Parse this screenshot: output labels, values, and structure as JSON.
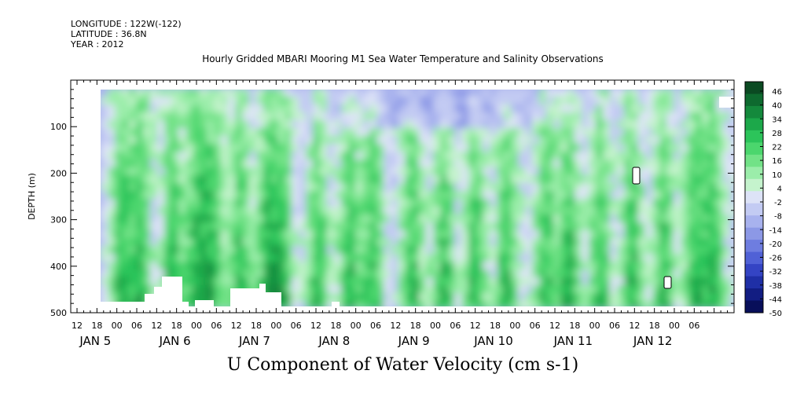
{
  "header": {
    "longitude": "LONGITUDE : 122W(-122)",
    "latitude": "LATITUDE : 36.8N",
    "year": "YEAR : 2012",
    "title": "Hourly Gridded MBARI Mooring M1 Sea Water Temperature and Salinity Observations",
    "variable_title": "U Component of Water Velocity (cm s-1)"
  },
  "chart_data": {
    "type": "heatmap",
    "ylabel": "DEPTH (m)",
    "ylim": [
      500,
      0
    ],
    "y_ticks": [
      "100",
      "200",
      "300",
      "400",
      "500"
    ],
    "y_tick_values": [
      100,
      200,
      300,
      400,
      500
    ],
    "x_hour_ticks": [
      "12",
      "18",
      "00",
      "06",
      "12",
      "18",
      "00",
      "06",
      "12",
      "18",
      "00",
      "06",
      "12",
      "18",
      "00",
      "06",
      "12",
      "18",
      "00",
      "06",
      "12",
      "18",
      "00",
      "06",
      "12",
      "18",
      "00",
      "06",
      "12",
      "18",
      "00",
      "06"
    ],
    "x_day_labels": [
      "JAN 5",
      "JAN 6",
      "JAN 7",
      "JAN 8",
      "JAN 9",
      "JAN 10",
      "JAN 11",
      "JAN 12"
    ],
    "colorbar_labels": [
      "46",
      "40",
      "34",
      "28",
      "22",
      "16",
      "10",
      "4",
      "-2",
      "-8",
      "-14",
      "-20",
      "-26",
      "-32",
      "-38",
      "-44",
      "-50"
    ],
    "colorbar_colors": [
      "#0b4a22",
      "#0e6a2f",
      "#14893c",
      "#1ca84a",
      "#2cc45a",
      "#4bd66d",
      "#72e287",
      "#9bedaa",
      "#c5f3cd",
      "#dde3f7",
      "#c3cbf3",
      "#a8b2ee",
      "#8c98e6",
      "#6e7de0",
      "#5061d6",
      "#3444c4",
      "#1f2fa6",
      "#121d82",
      "#080f5a"
    ],
    "colorbar_range": [
      -50,
      52
    ],
    "depth_range_data": [
      15,
      485
    ],
    "time_range_hours_from_jan5_12": [
      6,
      194
    ],
    "masked_areas_note": "white gaps near bottom and scattered"
  }
}
